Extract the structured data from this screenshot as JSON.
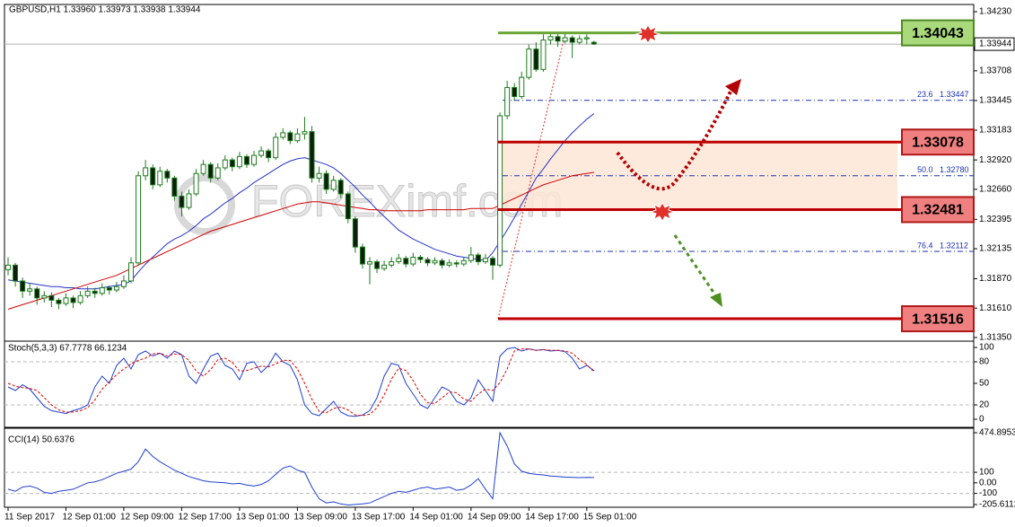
{
  "chart_data": {
    "type": "candlestick",
    "header": "GBPUSD,H1  1.33960 1.33973 1.33938 1.33944",
    "watermark": "FOREXimf.com",
    "categories": [
      "11 Sep 2017",
      null,
      null,
      null,
      null,
      null,
      null,
      null,
      "12 Sep 01:00",
      null,
      null,
      null,
      null,
      null,
      null,
      null,
      "12 Sep 09:00",
      null,
      null,
      null,
      null,
      null,
      null,
      null,
      "12 Sep 17:00",
      null,
      null,
      null,
      null,
      null,
      null,
      null,
      "13 Sep 01:00",
      null,
      null,
      null,
      null,
      null,
      null,
      null,
      "13 Sep 09:00",
      null,
      null,
      null,
      null,
      null,
      null,
      null,
      "13 Sep 17:00",
      null,
      null,
      null,
      null,
      null,
      null,
      null,
      "14 Sep 01:00",
      null,
      null,
      null,
      null,
      null,
      null,
      null,
      "14 Sep 09:00",
      null,
      null,
      null,
      null,
      null,
      null,
      null,
      "14 Sep 17:00",
      null,
      null,
      null,
      null,
      null,
      null,
      null,
      "15 Sep 01:00",
      null
    ],
    "ohlc": [
      [
        1.3195,
        1.3206,
        1.319,
        1.3199
      ],
      [
        1.3199,
        1.3201,
        1.318,
        1.3185
      ],
      [
        1.3185,
        1.3188,
        1.317,
        1.3176
      ],
      [
        1.3176,
        1.3183,
        1.3172,
        1.3178
      ],
      [
        1.3178,
        1.318,
        1.3164,
        1.317
      ],
      [
        1.317,
        1.3176,
        1.3166,
        1.3172
      ],
      [
        1.3172,
        1.3175,
        1.3162,
        1.3168
      ],
      [
        1.3168,
        1.317,
        1.316,
        1.3165
      ],
      [
        1.3165,
        1.3174,
        1.3163,
        1.317
      ],
      [
        1.317,
        1.3172,
        1.3161,
        1.3166
      ],
      [
        1.3166,
        1.3176,
        1.3164,
        1.3172
      ],
      [
        1.3172,
        1.318,
        1.317,
        1.3176
      ],
      [
        1.3176,
        1.3179,
        1.317,
        1.3174
      ],
      [
        1.3174,
        1.3183,
        1.3172,
        1.3179
      ],
      [
        1.3179,
        1.3181,
        1.3173,
        1.3177
      ],
      [
        1.3177,
        1.3184,
        1.3175,
        1.318
      ],
      [
        1.318,
        1.319,
        1.3178,
        1.3185
      ],
      [
        1.3185,
        1.3206,
        1.3183,
        1.3201
      ],
      [
        1.3201,
        1.3282,
        1.3199,
        1.3278
      ],
      [
        1.3278,
        1.3292,
        1.3274,
        1.3285
      ],
      [
        1.3285,
        1.3288,
        1.3266,
        1.327
      ],
      [
        1.327,
        1.3286,
        1.3268,
        1.3282
      ],
      [
        1.3282,
        1.3284,
        1.3272,
        1.3276
      ],
      [
        1.3276,
        1.3278,
        1.3256,
        1.326
      ],
      [
        1.326,
        1.3264,
        1.3242,
        1.325
      ],
      [
        1.325,
        1.3266,
        1.3248,
        1.3262
      ],
      [
        1.3262,
        1.3284,
        1.326,
        1.328
      ],
      [
        1.328,
        1.3292,
        1.3278,
        1.3288
      ],
      [
        1.3288,
        1.329,
        1.3272,
        1.3276
      ],
      [
        1.3276,
        1.3289,
        1.3274,
        1.3285
      ],
      [
        1.3285,
        1.3296,
        1.3283,
        1.3292
      ],
      [
        1.3292,
        1.3294,
        1.3282,
        1.3286
      ],
      [
        1.3286,
        1.3299,
        1.3284,
        1.3295
      ],
      [
        1.3295,
        1.3297,
        1.3285,
        1.3288
      ],
      [
        1.3288,
        1.33,
        1.3286,
        1.3296
      ],
      [
        1.3296,
        1.3304,
        1.3294,
        1.33
      ],
      [
        1.33,
        1.3302,
        1.329,
        1.3294
      ],
      [
        1.3294,
        1.3316,
        1.3292,
        1.3312
      ],
      [
        1.3312,
        1.332,
        1.331,
        1.3316
      ],
      [
        1.3316,
        1.3318,
        1.3306,
        1.3309
      ],
      [
        1.3309,
        1.332,
        1.3307,
        1.3315
      ],
      [
        1.3315,
        1.333,
        1.331,
        1.3317
      ],
      [
        1.3317,
        1.3322,
        1.3272,
        1.3276
      ],
      [
        1.3276,
        1.3286,
        1.3272,
        1.328
      ],
      [
        1.328,
        1.3283,
        1.3262,
        1.3266
      ],
      [
        1.3266,
        1.3278,
        1.3264,
        1.3274
      ],
      [
        1.3274,
        1.3276,
        1.3258,
        1.3262
      ],
      [
        1.3262,
        1.3264,
        1.3236,
        1.324
      ],
      [
        1.324,
        1.3242,
        1.321,
        1.3215
      ],
      [
        1.3215,
        1.3218,
        1.3196,
        1.32
      ],
      [
        1.32,
        1.3206,
        1.3182,
        1.3202
      ],
      [
        1.3202,
        1.3204,
        1.3192,
        1.3196
      ],
      [
        1.3196,
        1.3203,
        1.3194,
        1.3199
      ],
      [
        1.3199,
        1.3206,
        1.3197,
        1.3202
      ],
      [
        1.3202,
        1.3209,
        1.32,
        1.3205
      ],
      [
        1.3205,
        1.3207,
        1.3197,
        1.32
      ],
      [
        1.32,
        1.321,
        1.3198,
        1.3206
      ],
      [
        1.3206,
        1.3208,
        1.3201,
        1.3204
      ],
      [
        1.3204,
        1.3206,
        1.3198,
        1.3201
      ],
      [
        1.3201,
        1.3206,
        1.3199,
        1.3203
      ],
      [
        1.3203,
        1.3205,
        1.3196,
        1.3199
      ],
      [
        1.3199,
        1.3204,
        1.3197,
        1.3201
      ],
      [
        1.3201,
        1.3203,
        1.3197,
        1.32
      ],
      [
        1.32,
        1.3206,
        1.3198,
        1.3203
      ],
      [
        1.3203,
        1.3215,
        1.3201,
        1.3208
      ],
      [
        1.3208,
        1.321,
        1.3199,
        1.3202
      ],
      [
        1.3202,
        1.3209,
        1.32,
        1.3205
      ],
      [
        1.3205,
        1.3207,
        1.3186,
        1.3199
      ],
      [
        1.3199,
        1.3334,
        1.3197,
        1.3331
      ],
      [
        1.3331,
        1.3362,
        1.3328,
        1.3356
      ],
      [
        1.3356,
        1.336,
        1.3344,
        1.3348
      ],
      [
        1.3348,
        1.337,
        1.3346,
        1.3365
      ],
      [
        1.3365,
        1.3394,
        1.3363,
        1.339
      ],
      [
        1.339,
        1.3396,
        1.337,
        1.3372
      ],
      [
        1.3372,
        1.3403,
        1.337,
        1.3398
      ],
      [
        1.3398,
        1.3405,
        1.3394,
        1.3401
      ],
      [
        1.3401,
        1.3404,
        1.3392,
        1.3397
      ],
      [
        1.3397,
        1.3404,
        1.3395,
        1.34
      ],
      [
        1.34,
        1.3402,
        1.3382,
        1.3396
      ],
      [
        1.3396,
        1.3402,
        1.3394,
        1.3399
      ],
      [
        1.3399,
        1.3403,
        1.3394,
        1.34
      ],
      [
        1.3396,
        1.33973,
        1.33938,
        1.33944
      ]
    ],
    "bull_color": "#ffffff",
    "bear_color": "#0b1f0b",
    "candle_outline": "#1f7a1f",
    "ylim": [
      1.31318,
      1.34294
    ],
    "yticks": [
      {
        "value": 1.3423,
        "label": "1.34230"
      },
      1.33708,
      1.33445,
      1.33183,
      {
        "value": 1.3292,
        "label": "1.32920"
      },
      {
        "value": 1.3266,
        "label": "1.32660"
      },
      1.32395,
      1.32135,
      {
        "value": 1.3187,
        "label": "1.31870"
      },
      {
        "value": 1.3161,
        "label": "1.31610"
      },
      {
        "value": 1.3135,
        "label": "1.31350"
      }
    ],
    "current_price": 1.33944,
    "moving_averages": [
      {
        "color": "#2433c8",
        "values": [
          1.3186,
          1.3185,
          1.3184,
          1.3183,
          1.3182,
          1.3181,
          1.318,
          1.318,
          1.3179,
          1.3179,
          1.3178,
          1.3178,
          1.3178,
          1.3179,
          1.318,
          1.3181,
          1.3182,
          1.3185,
          1.3193,
          1.32,
          1.3206,
          1.3212,
          1.3218,
          1.3222,
          1.3225,
          1.3229,
          1.3234,
          1.324,
          1.3244,
          1.3249,
          1.3254,
          1.3258,
          1.3263,
          1.3267,
          1.3272,
          1.3276,
          1.328,
          1.3284,
          1.3288,
          1.3291,
          1.3293,
          1.3294,
          1.3292,
          1.329,
          1.3288,
          1.3285,
          1.328,
          1.3274,
          1.3268,
          1.3261,
          1.3255,
          1.3248,
          1.3242,
          1.3236,
          1.323,
          1.3226,
          1.3222,
          1.3219,
          1.3216,
          1.3213,
          1.3211,
          1.3209,
          1.3207,
          1.3206,
          1.3205,
          1.3204,
          1.3203,
          1.321,
          1.322,
          1.323,
          1.3241,
          1.3253,
          1.3264,
          1.3276,
          1.3284,
          1.3293,
          1.3301,
          1.3309,
          1.3316,
          1.3322,
          1.3328,
          1.3333
        ]
      },
      {
        "color": "#d10000",
        "values": [
          1.316,
          1.3162,
          1.3164,
          1.3166,
          1.3168,
          1.317,
          1.3172,
          1.3174,
          1.3176,
          1.3178,
          1.318,
          1.3182,
          1.3184,
          1.3186,
          1.3188,
          1.319,
          1.3193,
          1.3196,
          1.3199,
          1.3202,
          1.3205,
          1.3208,
          1.3211,
          1.3214,
          1.3217,
          1.322,
          1.3223,
          1.3226,
          1.3229,
          1.3231,
          1.3233,
          1.3235,
          1.3237,
          1.3239,
          1.3241,
          1.3243,
          1.3245,
          1.3247,
          1.3249,
          1.3251,
          1.3253,
          1.3254,
          1.3255,
          1.3255,
          1.3254,
          1.3253,
          1.3252,
          1.3251,
          1.325,
          1.3249,
          1.3248,
          1.3248,
          1.3247,
          1.3247,
          1.3247,
          1.3247,
          1.3247,
          1.3247,
          1.3248,
          1.3248,
          1.3248,
          1.3248,
          1.3248,
          1.3248,
          1.3249,
          1.3249,
          1.3249,
          1.3249,
          1.3252,
          1.3255,
          1.3258,
          1.3261,
          1.3264,
          1.3267,
          1.327,
          1.3272,
          1.3274,
          1.3276,
          1.3278,
          1.3279,
          1.328,
          1.3281
        ]
      }
    ],
    "levels": [
      {
        "value": 1.34043,
        "color": "#6aa53a",
        "fill": "#a9d97a",
        "border": "#4d8a22"
      },
      {
        "value": 1.33078,
        "color": "#c00000",
        "fill": "#f08080",
        "border": "#b01818"
      },
      {
        "value": 1.32481,
        "color": "#c00000",
        "fill": "#f08080",
        "border": "#b01818"
      },
      {
        "value": 1.31516,
        "color": "#c00000",
        "fill": "#f08080",
        "border": "#b01818"
      }
    ],
    "zone_color": "#fde6d6",
    "fib_color": "#1a2fb0",
    "fib": [
      {
        "ratio": 23.6,
        "price": 1.33447
      },
      {
        "ratio": {
          "value": 50,
          "label": "50.0"
        },
        "price": {
          "value": 1.3278,
          "label": "1.32780"
        }
      },
      {
        "ratio": 76.4,
        "price": 1.32112
      }
    ],
    "indicators": [
      {
        "type": "stochastic",
        "title": "Stoch(5,3,3) 67.7778 66.1234",
        "ylim": [
          -10,
          108.75
        ],
        "yticks": [
          100,
          80,
          50,
          20,
          0
        ],
        "levels": [
          80,
          20
        ],
        "series": [
          {
            "color": "#1f3fd0",
            "values": [
              45,
              40,
              48,
              42,
              30,
              18,
              12,
              10,
              8,
              12,
              15,
              20,
              45,
              60,
              50,
              75,
              85,
              70,
              90,
              95,
              88,
              92,
              85,
              95,
              90,
              60,
              50,
              70,
              88,
              92,
              75,
              70,
              55,
              78,
              80,
              65,
              75,
              92,
              80,
              75,
              55,
              20,
              8,
              5,
              15,
              25,
              10,
              5,
              4,
              6,
              12,
              30,
              60,
              78,
              75,
              50,
              35,
              20,
              15,
              30,
              45,
              40,
              25,
              20,
              30,
              55,
              40,
              25,
              88,
              98,
              100,
              95,
              98,
              96,
              97,
              95,
              96,
              94,
              85,
              70,
              75,
              67.7778
            ]
          },
          {
            "color": "#e00000",
            "dashed": true,
            "values": [
              50,
              46,
              44,
              43,
              40,
              30,
              20,
              13,
              10,
              10,
              12,
              16,
              27,
              42,
              52,
              62,
              70,
              77,
              82,
              85,
              91,
              92,
              88,
              91,
              90,
              82,
              67,
              60,
              69,
              83,
              85,
              79,
              67,
              68,
              71,
              74,
              73,
              77,
              82,
              82,
              70,
              50,
              28,
              11,
              9,
              15,
              17,
              13,
              6,
              5,
              7,
              16,
              34,
              56,
              71,
              68,
              54,
              35,
              23,
              22,
              30,
              38,
              37,
              28,
              25,
              35,
              42,
              40,
              51,
              70,
              95,
              98,
              98,
              96,
              97,
              96,
              96,
              95,
              92,
              83,
              76,
              66.1234
            ]
          }
        ]
      },
      {
        "type": "cci",
        "title": "CCI(14) 50.6376",
        "ylim": [
          -205.6112,
          474.8953
        ],
        "yticks": [
          474.8953,
          100,
          {
            "value": 0,
            "label": "0.00"
          },
          -100,
          -205.6112
        ],
        "levels": [
          100,
          -100
        ],
        "series": [
          {
            "color": "#1f3fd0",
            "values": [
              -60,
              -80,
              -40,
              -30,
              -50,
              -90,
              -100,
              -80,
              -70,
              -60,
              -30,
              0,
              10,
              30,
              60,
              90,
              110,
              130,
              200,
              320,
              250,
              200,
              160,
              120,
              90,
              60,
              40,
              20,
              10,
              5,
              0,
              -10,
              -5,
              -20,
              -30,
              -15,
              20,
              80,
              140,
              160,
              120,
              100,
              -40,
              -150,
              -190,
              -180,
              -200,
              -210,
              -205,
              -200,
              -190,
              -160,
              -130,
              -100,
              -80,
              -90,
              -70,
              -50,
              -40,
              -60,
              -50,
              -40,
              -70,
              -60,
              -20,
              40,
              -60,
              -150,
              474.8953,
              350,
              180,
              110,
              90,
              80,
              75,
              65,
              60,
              55,
              52,
              50,
              51,
              50.6376
            ]
          }
        ]
      }
    ]
  }
}
